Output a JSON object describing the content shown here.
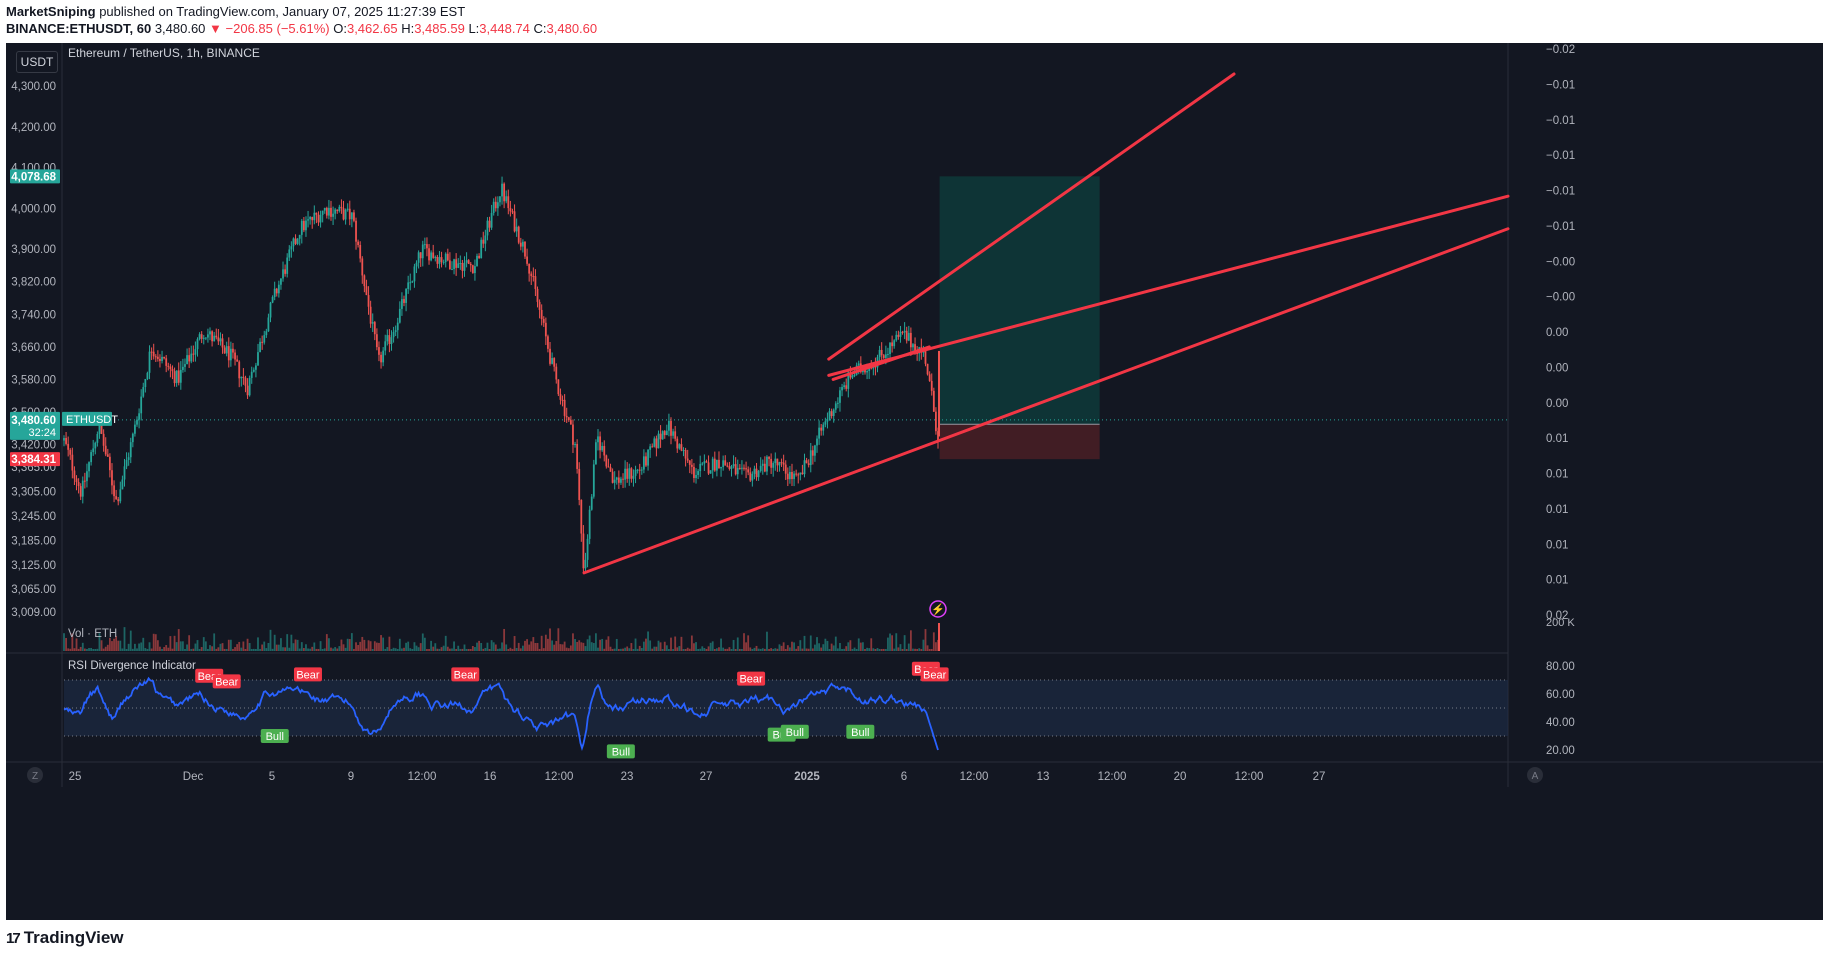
{
  "header": {
    "author": "MarketSniping",
    "published_text": "published on TradingView.com, January 07, 2025 11:27:39 EST",
    "symbol_line": "BINANCE:ETHUSDT, 60",
    "last": "3,480.60",
    "change": "▼ −206.85 (−5.61%)",
    "o_label": "O:",
    "o": "3,462.65",
    "h_label": "H:",
    "h": "3,485.59",
    "l_label": "L:",
    "l": "3,448.74",
    "c_label": "C:",
    "c": "3,480.60"
  },
  "currency_button": "USDT",
  "pane_title": "Ethereum / TetherUS, 1h, BINANCE",
  "vol_label": "Vol · ETH",
  "rsi_label": "RSI Divergence Indicator",
  "footer_brand": "TradingView",
  "footer_logo_glyph": "17",
  "z_button": "Z",
  "a_button": "A",
  "badges": {
    "current_price": "3,480.60",
    "countdown": "32:24",
    "ticker": "ETHUSDT",
    "target_price": "4,078.68",
    "stop_price": "3,384.31",
    "vol_max": "200 K"
  },
  "colors": {
    "background": "#131722",
    "candle_up": "#26a69a",
    "candle_down": "#ef5350",
    "trendline": "#f23645",
    "rsi_line": "#2962ff",
    "target_zone": "#0e3a3a",
    "stop_zone": "#4a1e24",
    "target_badge": "#26a69a",
    "stop_badge": "#f23645"
  },
  "chart_data": {
    "type": "candlestick",
    "symbol": "ETHUSDT",
    "interval": "1h",
    "ylim": [
      3009,
      4330
    ],
    "y_ticks": [
      "4,300.00",
      "4,200.00",
      "4,100.00",
      "4,000.00",
      "3,900.00",
      "3,820.00",
      "3,740.00",
      "3,660.00",
      "3,580.00",
      "3,500.00",
      "3,420.00",
      "3,365.00",
      "3,305.00",
      "3,245.00",
      "3,185.00",
      "3,125.00",
      "3,065.00",
      "3,009.00"
    ],
    "y_tick_values": [
      4300,
      4200,
      4100,
      4000,
      3900,
      3820,
      3740,
      3660,
      3580,
      3500,
      3420,
      3365,
      3305,
      3245,
      3185,
      3125,
      3065,
      3009
    ],
    "right_axis_ticks": [
      "−0.02",
      "−0.01",
      "−0.01",
      "−0.01",
      "−0.01",
      "−0.01",
      "−0.00",
      "−0.00",
      "0.00",
      "0.00",
      "0.00",
      "0.01",
      "0.01",
      "0.01",
      "0.01",
      "0.01",
      "0.02"
    ],
    "x_ticks": [
      "25",
      "Dec",
      "5",
      "9",
      "12:00",
      "16",
      "12:00",
      "23",
      "27",
      "2025",
      "6",
      "12:00",
      "13",
      "12:00",
      "20",
      "12:00",
      "27"
    ],
    "price_path": [
      {
        "t": 0.0,
        "p": 3430
      },
      {
        "t": 0.02,
        "p": 3300
      },
      {
        "t": 0.04,
        "p": 3470
      },
      {
        "t": 0.06,
        "p": 3280
      },
      {
        "t": 0.08,
        "p": 3450
      },
      {
        "t": 0.1,
        "p": 3660
      },
      {
        "t": 0.13,
        "p": 3580
      },
      {
        "t": 0.16,
        "p": 3700
      },
      {
        "t": 0.19,
        "p": 3640
      },
      {
        "t": 0.21,
        "p": 3560
      },
      {
        "t": 0.24,
        "p": 3780
      },
      {
        "t": 0.27,
        "p": 3950
      },
      {
        "t": 0.3,
        "p": 4000
      },
      {
        "t": 0.33,
        "p": 3980
      },
      {
        "t": 0.36,
        "p": 3620
      },
      {
        "t": 0.38,
        "p": 3720
      },
      {
        "t": 0.41,
        "p": 3900
      },
      {
        "t": 0.44,
        "p": 3870
      },
      {
        "t": 0.47,
        "p": 3860
      },
      {
        "t": 0.5,
        "p": 4050
      },
      {
        "t": 0.53,
        "p": 3880
      },
      {
        "t": 0.56,
        "p": 3600
      },
      {
        "t": 0.585,
        "p": 3420
      },
      {
        "t": 0.595,
        "p": 3105
      },
      {
        "t": 0.61,
        "p": 3440
      },
      {
        "t": 0.63,
        "p": 3330
      },
      {
        "t": 0.66,
        "p": 3360
      },
      {
        "t": 0.69,
        "p": 3470
      },
      {
        "t": 0.72,
        "p": 3350
      },
      {
        "t": 0.75,
        "p": 3380
      },
      {
        "t": 0.78,
        "p": 3340
      },
      {
        "t": 0.81,
        "p": 3380
      },
      {
        "t": 0.84,
        "p": 3330
      },
      {
        "t": 0.87,
        "p": 3470
      },
      {
        "t": 0.9,
        "p": 3590
      },
      {
        "t": 0.93,
        "p": 3630
      },
      {
        "t": 0.96,
        "p": 3690
      },
      {
        "t": 0.985,
        "p": 3640
      },
      {
        "t": 1.0,
        "p": 3440
      }
    ],
    "trendlines": [
      {
        "name": "lower-support",
        "from": {
          "x": "Dec 20",
          "y": 3105
        },
        "to": {
          "x": "Jan 28",
          "y": 3950
        }
      },
      {
        "name": "upper-channel",
        "from": {
          "x": "Jan 3",
          "y": 3590
        },
        "to": {
          "x": "Jan 28",
          "y": 4030
        }
      },
      {
        "name": "wedge-top",
        "from": {
          "x": "Jan 3",
          "y": 3630
        },
        "to": {
          "x": "Jan 23",
          "y": 4330
        }
      }
    ],
    "position": {
      "entry": 3470,
      "target": 4078.68,
      "stop": 3384.31
    },
    "rsi": {
      "ylim": [
        15,
        85
      ],
      "y_ticks": [
        "80.00",
        "60.00",
        "40.00",
        "20.00"
      ],
      "y_tick_values": [
        80,
        60,
        40,
        20
      ],
      "bands": [
        30,
        50,
        70
      ],
      "labels": [
        {
          "text": "Bear",
          "t": 0.165,
          "v": 73
        },
        {
          "text": "Bear",
          "t": 0.185,
          "v": 69
        },
        {
          "text": "Bull",
          "t": 0.24,
          "v": 30
        },
        {
          "text": "Bear",
          "t": 0.278,
          "v": 74
        },
        {
          "text": "Bear",
          "t": 0.458,
          "v": 74
        },
        {
          "text": "Bull",
          "t": 0.636,
          "v": 19
        },
        {
          "text": "Bear",
          "t": 0.785,
          "v": 71
        },
        {
          "text": "Bull",
          "t": 0.82,
          "v": 31
        },
        {
          "text": "Bull",
          "t": 0.835,
          "v": 33
        },
        {
          "text": "Bull",
          "t": 0.91,
          "v": 33
        },
        {
          "text": "Bear",
          "t": 0.985,
          "v": 78
        },
        {
          "text": "Bear",
          "t": 0.995,
          "v": 74
        }
      ]
    }
  }
}
